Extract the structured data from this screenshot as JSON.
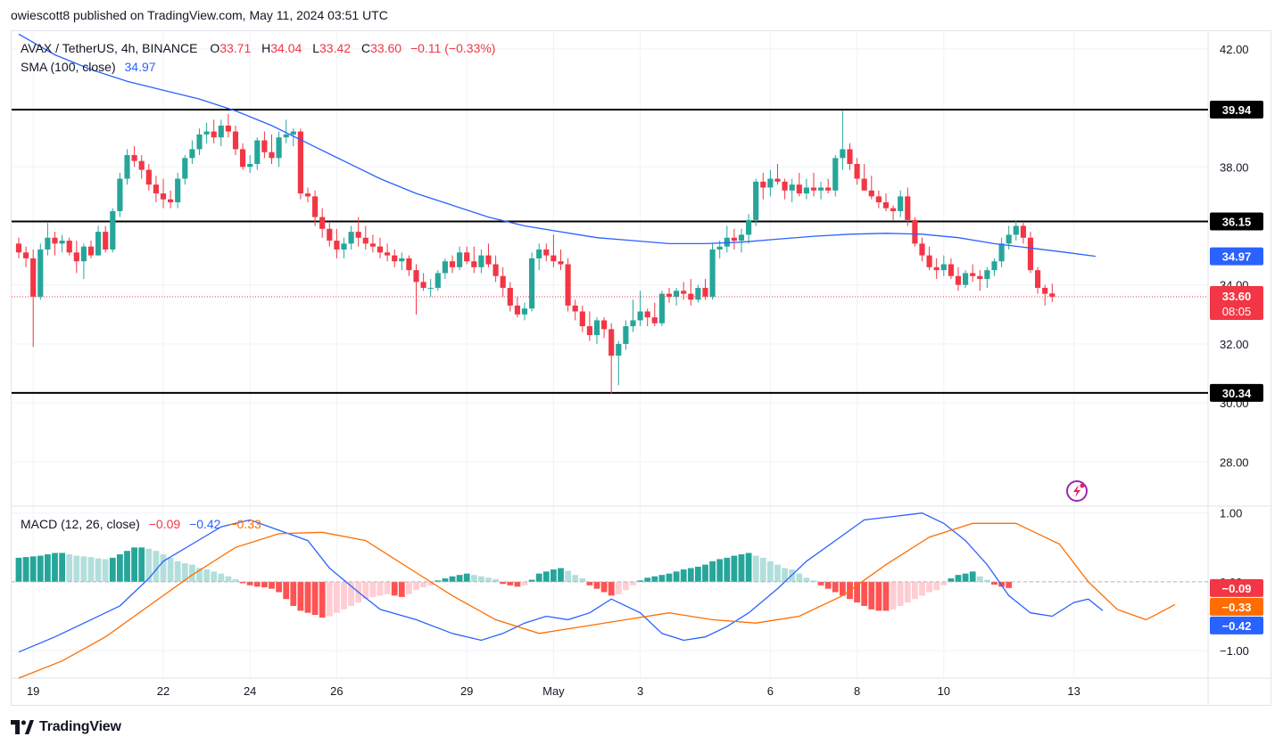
{
  "caption": "owiescott8 published on TradingView.com, May 11, 2024 03:51 UTC",
  "footer": {
    "brand": "TradingView"
  },
  "colors": {
    "up": "#26a69a",
    "down": "#f23645",
    "sma": "#2962ff",
    "macd": "#2962ff",
    "signal": "#ff6d00",
    "grid": "#f0f3fa",
    "hist_up_strong": "#26a69a",
    "hist_up_weak": "#b2dfdb",
    "hist_down_strong": "#ff5252",
    "hist_down_weak": "#ffcdd2"
  },
  "legend": {
    "symbol": "AVAX / TetherUS, 4h, BINANCE",
    "o_label": "O",
    "o": "33.71",
    "h_label": "H",
    "h": "34.04",
    "l_label": "L",
    "l": "33.42",
    "c_label": "C",
    "c": "33.60",
    "change": "−0.11 (−0.33%)",
    "sma_label": "SMA (100, close)",
    "sma_value": "34.97",
    "macd_label": "MACD (12, 26, close)",
    "macd_hist": "−0.09",
    "macd_line": "−0.42",
    "macd_signal": "−0.33"
  },
  "chart_data": {
    "type": "candlestick",
    "price_axis": {
      "ticks": [
        "42.00",
        "38.00",
        "34.00",
        "32.00",
        "30.00",
        "28.00"
      ],
      "ylim": [
        26.5,
        42.6
      ]
    },
    "macd_axis": {
      "ticks": [
        "1.00",
        "0.00",
        "−1.00"
      ],
      "ylim": [
        -1.4,
        1.1
      ]
    },
    "x_ticks": [
      {
        "label": "19",
        "bar": 2
      },
      {
        "label": "22",
        "bar": 20
      },
      {
        "label": "24",
        "bar": 32
      },
      {
        "label": "26",
        "bar": 44
      },
      {
        "label": "29",
        "bar": 62
      },
      {
        "label": "May",
        "bar": 74
      },
      {
        "label": "3",
        "bar": 86
      },
      {
        "label": "6",
        "bar": 104
      },
      {
        "label": "8",
        "bar": 116
      },
      {
        "label": "10",
        "bar": 128
      },
      {
        "label": "13",
        "bar": 146
      }
    ],
    "horizontal_lines": [
      {
        "value": 39.94,
        "label": "39.94"
      },
      {
        "value": 36.15,
        "label": "36.15"
      },
      {
        "value": 30.34,
        "label": "30.34"
      }
    ],
    "price_badges": {
      "sma": {
        "value": 34.97,
        "label": "34.97"
      },
      "last": {
        "value": 33.6,
        "label": "33.60",
        "countdown": "08:05"
      }
    },
    "macd_badges": [
      {
        "value": -0.09,
        "label": "−0.09",
        "color": "#f23645"
      },
      {
        "value": -0.33,
        "label": "−0.33",
        "color": "#ff6d00"
      },
      {
        "value": -0.42,
        "label": "−0.42",
        "color": "#2962ff"
      }
    ],
    "candles": [
      [
        35.4,
        35.6,
        34.9,
        35.1
      ],
      [
        35.1,
        35.3,
        34.6,
        34.9
      ],
      [
        34.9,
        35.2,
        31.9,
        33.6
      ],
      [
        33.6,
        35.4,
        33.5,
        35.2
      ],
      [
        35.2,
        36.1,
        35.0,
        35.6
      ],
      [
        35.6,
        35.8,
        35.0,
        35.4
      ],
      [
        35.4,
        35.7,
        35.1,
        35.5
      ],
      [
        35.5,
        35.6,
        35.0,
        35.1
      ],
      [
        35.1,
        35.5,
        34.4,
        34.8
      ],
      [
        34.8,
        35.4,
        34.2,
        35.3
      ],
      [
        35.3,
        35.5,
        34.9,
        35.0
      ],
      [
        35.0,
        36.0,
        35.0,
        35.8
      ],
      [
        35.8,
        36.0,
        35.1,
        35.2
      ],
      [
        35.2,
        36.6,
        35.1,
        36.5
      ],
      [
        36.5,
        37.8,
        36.3,
        37.6
      ],
      [
        37.6,
        38.6,
        37.4,
        38.4
      ],
      [
        38.4,
        38.7,
        38.0,
        38.2
      ],
      [
        38.2,
        38.4,
        37.6,
        37.9
      ],
      [
        37.9,
        38.1,
        37.2,
        37.4
      ],
      [
        37.4,
        37.7,
        36.8,
        37.1
      ],
      [
        37.1,
        37.6,
        36.6,
        36.9
      ],
      [
        36.9,
        37.2,
        36.6,
        36.8
      ],
      [
        36.8,
        37.8,
        36.6,
        37.6
      ],
      [
        37.6,
        38.4,
        37.4,
        38.3
      ],
      [
        38.3,
        38.9,
        38.1,
        38.6
      ],
      [
        38.6,
        39.3,
        38.4,
        39.1
      ],
      [
        39.1,
        39.5,
        38.8,
        39.2
      ],
      [
        39.2,
        39.6,
        38.8,
        39.0
      ],
      [
        39.0,
        39.6,
        38.7,
        39.4
      ],
      [
        39.4,
        39.8,
        39.0,
        39.2
      ],
      [
        39.2,
        39.4,
        38.4,
        38.6
      ],
      [
        38.6,
        38.8,
        37.9,
        38.0
      ],
      [
        38.0,
        38.4,
        37.8,
        38.1
      ],
      [
        38.1,
        39.0,
        37.9,
        38.9
      ],
      [
        38.9,
        39.2,
        38.3,
        38.5
      ],
      [
        38.5,
        39.1,
        38.1,
        38.3
      ],
      [
        38.3,
        39.2,
        38.0,
        39.0
      ],
      [
        39.0,
        39.6,
        38.8,
        39.1
      ],
      [
        39.1,
        39.3,
        38.7,
        39.2
      ],
      [
        39.2,
        39.3,
        36.9,
        37.1
      ],
      [
        37.1,
        37.3,
        36.8,
        37.0
      ],
      [
        37.0,
        37.2,
        36.0,
        36.3
      ],
      [
        36.3,
        36.6,
        35.6,
        35.9
      ],
      [
        35.9,
        36.1,
        35.3,
        35.5
      ],
      [
        35.5,
        35.9,
        34.9,
        35.2
      ],
      [
        35.2,
        35.6,
        34.9,
        35.4
      ],
      [
        35.4,
        36.0,
        35.2,
        35.8
      ],
      [
        35.8,
        36.3,
        35.3,
        35.6
      ],
      [
        35.6,
        36.0,
        35.2,
        35.4
      ],
      [
        35.4,
        35.7,
        35.1,
        35.3
      ],
      [
        35.3,
        35.6,
        34.9,
        35.1
      ],
      [
        35.1,
        35.4,
        34.8,
        35.0
      ],
      [
        35.0,
        35.2,
        34.6,
        34.8
      ],
      [
        34.8,
        35.1,
        34.5,
        34.9
      ],
      [
        34.9,
        35.0,
        34.3,
        34.5
      ],
      [
        34.5,
        34.7,
        33.0,
        34.1
      ],
      [
        34.1,
        34.4,
        33.8,
        33.9
      ],
      [
        33.9,
        34.2,
        33.6,
        33.9
      ],
      [
        33.9,
        34.5,
        33.8,
        34.4
      ],
      [
        34.4,
        34.9,
        34.2,
        34.8
      ],
      [
        34.8,
        35.0,
        34.4,
        34.6
      ],
      [
        34.6,
        35.3,
        34.5,
        35.1
      ],
      [
        35.1,
        35.3,
        34.7,
        34.8
      ],
      [
        34.8,
        35.3,
        34.4,
        34.6
      ],
      [
        34.6,
        35.2,
        34.4,
        35.0
      ],
      [
        35.0,
        35.4,
        34.6,
        34.7
      ],
      [
        34.7,
        35.0,
        34.1,
        34.3
      ],
      [
        34.3,
        34.6,
        33.6,
        33.9
      ],
      [
        33.9,
        34.1,
        33.1,
        33.3
      ],
      [
        33.3,
        33.6,
        32.9,
        33.0
      ],
      [
        33.0,
        33.4,
        32.8,
        33.2
      ],
      [
        33.2,
        35.1,
        33.1,
        34.9
      ],
      [
        34.9,
        35.4,
        34.5,
        35.2
      ],
      [
        35.2,
        35.4,
        34.8,
        35.0
      ],
      [
        35.0,
        35.7,
        34.6,
        34.8
      ],
      [
        34.8,
        35.2,
        34.5,
        34.7
      ],
      [
        34.7,
        34.9,
        33.1,
        33.3
      ],
      [
        33.3,
        33.5,
        32.8,
        33.1
      ],
      [
        33.1,
        33.3,
        32.4,
        32.6
      ],
      [
        32.6,
        33.1,
        32.1,
        32.3
      ],
      [
        32.3,
        32.9,
        32.0,
        32.8
      ],
      [
        32.8,
        32.9,
        32.2,
        32.5
      ],
      [
        32.5,
        32.7,
        30.3,
        31.6
      ],
      [
        31.6,
        32.1,
        30.6,
        32.0
      ],
      [
        32.0,
        32.8,
        31.8,
        32.6
      ],
      [
        32.6,
        33.5,
        32.4,
        32.8
      ],
      [
        32.8,
        33.8,
        32.6,
        33.1
      ],
      [
        33.1,
        33.2,
        32.6,
        32.9
      ],
      [
        32.9,
        33.4,
        32.6,
        32.7
      ],
      [
        32.7,
        33.8,
        32.6,
        33.7
      ],
      [
        33.7,
        33.9,
        33.4,
        33.6
      ],
      [
        33.6,
        33.9,
        33.3,
        33.8
      ],
      [
        33.8,
        34.1,
        33.5,
        33.7
      ],
      [
        33.7,
        34.2,
        33.3,
        33.5
      ],
      [
        33.5,
        34.0,
        33.4,
        33.9
      ],
      [
        33.9,
        34.2,
        33.5,
        33.6
      ],
      [
        33.6,
        35.4,
        33.5,
        35.2
      ],
      [
        35.2,
        35.5,
        34.9,
        35.3
      ],
      [
        35.3,
        36.0,
        35.1,
        35.6
      ],
      [
        35.6,
        35.9,
        35.2,
        35.5
      ],
      [
        35.5,
        35.9,
        35.1,
        35.7
      ],
      [
        35.7,
        36.4,
        35.4,
        36.2
      ],
      [
        36.2,
        37.6,
        36.0,
        37.5
      ],
      [
        37.5,
        37.8,
        36.9,
        37.3
      ],
      [
        37.3,
        37.9,
        37.0,
        37.6
      ],
      [
        37.6,
        38.1,
        37.4,
        37.5
      ],
      [
        37.5,
        37.6,
        36.9,
        37.2
      ],
      [
        37.2,
        37.6,
        36.8,
        37.4
      ],
      [
        37.4,
        37.8,
        37.0,
        37.1
      ],
      [
        37.1,
        37.6,
        36.9,
        37.3
      ],
      [
        37.3,
        37.8,
        37.0,
        37.2
      ],
      [
        37.2,
        37.5,
        36.9,
        37.3
      ],
      [
        37.3,
        37.6,
        37.1,
        37.2
      ],
      [
        37.2,
        38.4,
        37.0,
        38.3
      ],
      [
        38.3,
        39.9,
        37.9,
        38.6
      ],
      [
        38.6,
        38.8,
        37.9,
        38.1
      ],
      [
        38.1,
        38.3,
        37.4,
        37.6
      ],
      [
        37.6,
        38.1,
        37.2,
        37.2
      ],
      [
        37.2,
        37.7,
        36.9,
        37.0
      ],
      [
        37.0,
        37.2,
        36.6,
        36.8
      ],
      [
        36.8,
        37.1,
        36.5,
        36.6
      ],
      [
        36.6,
        36.7,
        36.2,
        36.5
      ],
      [
        36.5,
        37.2,
        36.3,
        37.0
      ],
      [
        37.0,
        37.3,
        36.0,
        36.2
      ],
      [
        36.2,
        36.3,
        35.3,
        35.4
      ],
      [
        35.4,
        35.6,
        34.8,
        35.0
      ],
      [
        35.0,
        35.3,
        34.5,
        34.6
      ],
      [
        34.6,
        34.9,
        34.2,
        34.5
      ],
      [
        34.5,
        35.0,
        34.3,
        34.7
      ],
      [
        34.7,
        34.9,
        34.2,
        34.3
      ],
      [
        34.3,
        34.6,
        33.8,
        34.0
      ],
      [
        34.0,
        34.5,
        33.9,
        34.4
      ],
      [
        34.4,
        34.7,
        34.1,
        34.3
      ],
      [
        34.3,
        34.5,
        33.8,
        34.2
      ],
      [
        34.2,
        34.6,
        33.9,
        34.5
      ],
      [
        34.5,
        34.9,
        34.3,
        34.8
      ],
      [
        34.8,
        35.6,
        34.6,
        35.4
      ],
      [
        35.4,
        36.0,
        35.2,
        35.7
      ],
      [
        35.7,
        36.2,
        35.5,
        36.0
      ],
      [
        36.0,
        36.1,
        35.4,
        35.6
      ],
      [
        35.6,
        35.8,
        34.4,
        34.5
      ],
      [
        34.5,
        34.6,
        33.7,
        33.9
      ],
      [
        33.9,
        34.0,
        33.3,
        33.7
      ],
      [
        33.71,
        34.04,
        33.42,
        33.6
      ]
    ],
    "sma": [
      [
        0,
        42.5
      ],
      [
        5,
        41.8
      ],
      [
        10,
        41.3
      ],
      [
        15,
        40.9
      ],
      [
        20,
        40.6
      ],
      [
        25,
        40.3
      ],
      [
        30,
        39.9
      ],
      [
        35,
        39.4
      ],
      [
        40,
        38.8
      ],
      [
        45,
        38.2
      ],
      [
        50,
        37.6
      ],
      [
        55,
        37.1
      ],
      [
        60,
        36.7
      ],
      [
        65,
        36.3
      ],
      [
        70,
        36.0
      ],
      [
        75,
        35.8
      ],
      [
        80,
        35.6
      ],
      [
        85,
        35.5
      ],
      [
        90,
        35.4
      ],
      [
        95,
        35.4
      ],
      [
        100,
        35.45
      ],
      [
        105,
        35.55
      ],
      [
        110,
        35.65
      ],
      [
        115,
        35.72
      ],
      [
        120,
        35.75
      ],
      [
        125,
        35.72
      ],
      [
        130,
        35.6
      ],
      [
        135,
        35.4
      ],
      [
        140,
        35.25
      ],
      [
        145,
        35.1
      ],
      [
        149,
        34.97
      ]
    ],
    "macd_line": [
      [
        0,
        -1.02
      ],
      [
        5,
        -0.8
      ],
      [
        10,
        -0.55
      ],
      [
        14,
        -0.35
      ],
      [
        18,
        0.05
      ],
      [
        20,
        0.3
      ],
      [
        24,
        0.55
      ],
      [
        28,
        0.8
      ],
      [
        32,
        0.9
      ],
      [
        36,
        0.75
      ],
      [
        40,
        0.6
      ],
      [
        43,
        0.2
      ],
      [
        47,
        -0.15
      ],
      [
        50,
        -0.4
      ],
      [
        55,
        -0.55
      ],
      [
        60,
        -0.75
      ],
      [
        64,
        -0.85
      ],
      [
        67,
        -0.75
      ],
      [
        70,
        -0.6
      ],
      [
        73,
        -0.5
      ],
      [
        76,
        -0.55
      ],
      [
        79,
        -0.45
      ],
      [
        82,
        -0.25
      ],
      [
        86,
        -0.45
      ],
      [
        89,
        -0.75
      ],
      [
        92,
        -0.85
      ],
      [
        95,
        -0.8
      ],
      [
        98,
        -0.65
      ],
      [
        101,
        -0.45
      ],
      [
        105,
        -0.1
      ],
      [
        109,
        0.3
      ],
      [
        113,
        0.6
      ],
      [
        117,
        0.9
      ],
      [
        121,
        0.95
      ],
      [
        125,
        1.0
      ],
      [
        128,
        0.85
      ],
      [
        131,
        0.6
      ],
      [
        134,
        0.25
      ],
      [
        137,
        -0.2
      ],
      [
        140,
        -0.45
      ],
      [
        143,
        -0.5
      ],
      [
        146,
        -0.3
      ],
      [
        148,
        -0.25
      ],
      [
        150,
        -0.42
      ]
    ],
    "macd_signal": [
      [
        0,
        -1.4
      ],
      [
        6,
        -1.15
      ],
      [
        12,
        -0.8
      ],
      [
        18,
        -0.35
      ],
      [
        24,
        0.1
      ],
      [
        30,
        0.5
      ],
      [
        36,
        0.7
      ],
      [
        42,
        0.72
      ],
      [
        48,
        0.6
      ],
      [
        54,
        0.2
      ],
      [
        60,
        -0.2
      ],
      [
        66,
        -0.55
      ],
      [
        72,
        -0.75
      ],
      [
        78,
        -0.65
      ],
      [
        84,
        -0.55
      ],
      [
        90,
        -0.45
      ],
      [
        96,
        -0.55
      ],
      [
        102,
        -0.6
      ],
      [
        108,
        -0.5
      ],
      [
        114,
        -0.2
      ],
      [
        120,
        0.25
      ],
      [
        126,
        0.65
      ],
      [
        132,
        0.85
      ],
      [
        138,
        0.85
      ],
      [
        144,
        0.55
      ],
      [
        148,
        0.0
      ],
      [
        152,
        -0.4
      ],
      [
        156,
        -0.55
      ],
      [
        160,
        -0.33
      ]
    ],
    "histogram": [
      0.35,
      0.36,
      0.37,
      0.38,
      0.4,
      0.42,
      0.42,
      0.4,
      0.38,
      0.37,
      0.36,
      0.34,
      0.33,
      0.35,
      0.4,
      0.45,
      0.5,
      0.5,
      0.48,
      0.45,
      0.4,
      0.35,
      0.3,
      0.27,
      0.25,
      0.2,
      0.18,
      0.15,
      0.12,
      0.08,
      0.04,
      -0.02,
      -0.05,
      -0.07,
      -0.08,
      -0.1,
      -0.15,
      -0.25,
      -0.35,
      -0.42,
      -0.45,
      -0.48,
      -0.52,
      -0.5,
      -0.45,
      -0.4,
      -0.35,
      -0.3,
      -0.25,
      -0.22,
      -0.2,
      -0.18,
      -0.2,
      -0.22,
      -0.18,
      -0.12,
      -0.08,
      -0.05,
      0.02,
      0.05,
      0.08,
      0.1,
      0.12,
      0.1,
      0.08,
      0.06,
      0.04,
      -0.03,
      -0.05,
      -0.07,
      -0.05,
      0.03,
      0.12,
      0.15,
      0.18,
      0.2,
      0.16,
      0.1,
      0.05,
      -0.05,
      -0.1,
      -0.15,
      -0.2,
      -0.18,
      -0.12,
      -0.05,
      0.02,
      0.06,
      0.08,
      0.1,
      0.12,
      0.15,
      0.18,
      0.2,
      0.22,
      0.25,
      0.3,
      0.33,
      0.35,
      0.38,
      0.4,
      0.42,
      0.38,
      0.35,
      0.3,
      0.25,
      0.2,
      0.18,
      0.12,
      0.06,
      0.02,
      -0.05,
      -0.1,
      -0.15,
      -0.2,
      -0.25,
      -0.3,
      -0.35,
      -0.4,
      -0.42,
      -0.42,
      -0.4,
      -0.35,
      -0.3,
      -0.25,
      -0.2,
      -0.15,
      -0.12,
      -0.05,
      0.05,
      0.1,
      0.12,
      0.15,
      0.08,
      0.03,
      -0.04,
      -0.07,
      -0.09
    ]
  }
}
